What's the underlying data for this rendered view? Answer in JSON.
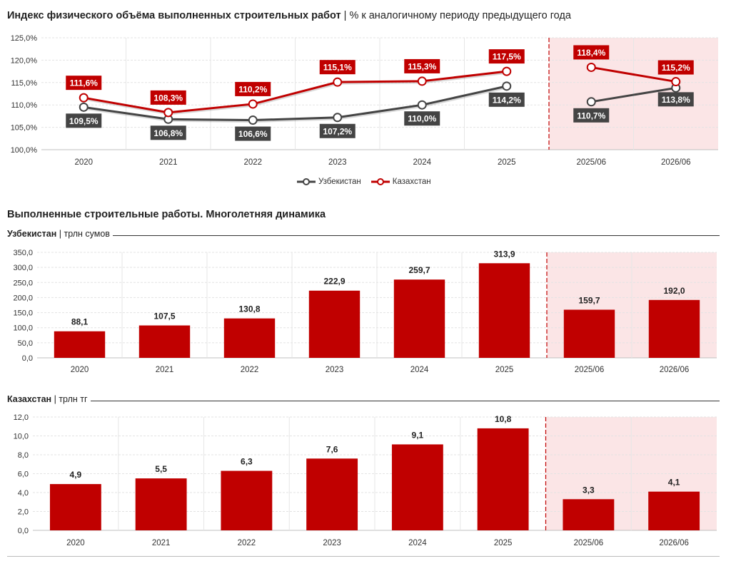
{
  "colors": {
    "uz": "#444444",
    "kz": "#c00000",
    "bar": "#c00000",
    "forecast_bg": "#fbe5e6",
    "grid": "#e3e3e3",
    "divider": "#c00000"
  },
  "index_chart": {
    "title_bold": "Индекс физического объёма выполненных строительных работ",
    "title_sep": "|",
    "title_rest": "% к аналогичному периоду предыдущего года"
  },
  "section2": {
    "title": "Выполненные строительные работы. Многолетняя динамика"
  },
  "uz_chart": {
    "label_bold": "Узбекистан",
    "label_sep": "|",
    "label_unit": "трлн сумов"
  },
  "kz_chart": {
    "label_bold": "Казахстан",
    "label_sep": "|",
    "label_unit": "трлн тг"
  },
  "legend": [
    "Узбекистан",
    "Казахстан"
  ],
  "chart_data": [
    {
      "type": "line",
      "categories": [
        "2020",
        "2021",
        "2022",
        "2023",
        "2024",
        "2025",
        "2025/06",
        "2026/06"
      ],
      "ylim": [
        100,
        125
      ],
      "yticks": [
        "100,0%",
        "105,0%",
        "110,0%",
        "115,0%",
        "120,0%",
        "125,0%"
      ],
      "series": [
        {
          "name": "Узбекистан",
          "values": [
            109.5,
            106.8,
            106.6,
            107.2,
            110.0,
            114.2,
            110.7,
            113.8
          ],
          "labels": [
            "109,5%",
            "106,8%",
            "106,6%",
            "107,2%",
            "110,0%",
            "114,2%",
            "110,7%",
            "113,8%"
          ]
        },
        {
          "name": "Казахстан",
          "values": [
            111.6,
            108.3,
            110.2,
            115.1,
            115.3,
            117.5,
            118.4,
            115.2
          ],
          "labels": [
            "111,6%",
            "108,3%",
            "110,2%",
            "115,1%",
            "115,3%",
            "117,5%",
            "118,4%",
            "115,2%"
          ]
        }
      ],
      "legend": "bottom-center",
      "grid": true
    },
    {
      "type": "bar",
      "categories": [
        "2020",
        "2021",
        "2022",
        "2023",
        "2024",
        "2025",
        "2025/06",
        "2026/06"
      ],
      "values": [
        88.1,
        107.5,
        130.8,
        222.9,
        259.7,
        313.9,
        159.7,
        192.0
      ],
      "labels": [
        "88,1",
        "107,5",
        "130,8",
        "222,9",
        "259,7",
        "313,9",
        "159,7",
        "192,0"
      ],
      "ylim": [
        0,
        350
      ],
      "yticks": [
        "0,0",
        "50,0",
        "100,0",
        "150,0",
        "200,0",
        "250,0",
        "300,0",
        "350,0"
      ],
      "grid": true
    },
    {
      "type": "bar",
      "categories": [
        "2020",
        "2021",
        "2022",
        "2023",
        "2024",
        "2025",
        "2025/06",
        "2026/06"
      ],
      "values": [
        4.9,
        5.5,
        6.3,
        7.6,
        9.1,
        10.8,
        3.3,
        4.1
      ],
      "labels": [
        "4,9",
        "5,5",
        "6,3",
        "7,6",
        "9,1",
        "10,8",
        "3,3",
        "4,1"
      ],
      "ylim": [
        0,
        12
      ],
      "yticks": [
        "0,0",
        "2,0",
        "4,0",
        "6,0",
        "8,0",
        "10,0",
        "12,0"
      ],
      "grid": true
    }
  ]
}
